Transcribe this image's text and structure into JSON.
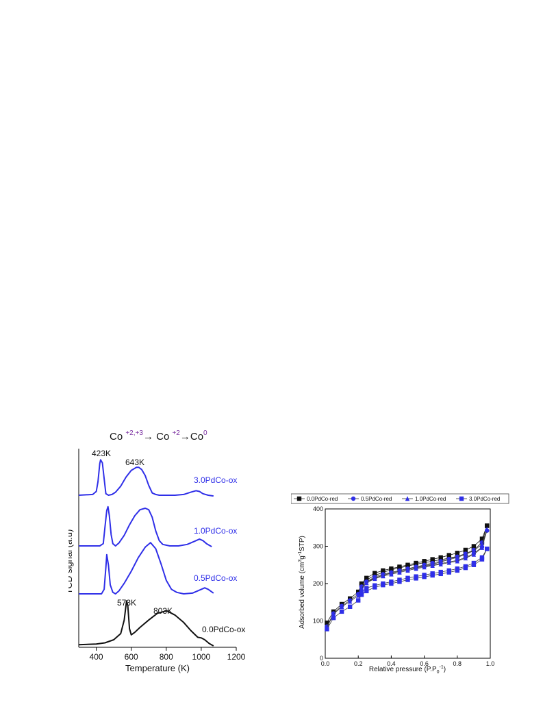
{
  "tpr": {
    "equation": {
      "co1": "Co ",
      "sup1": "+2,+3",
      "arrow1": "→",
      "co2": " Co ",
      "sup2": "+2",
      "arrow2": "→",
      "co3": "Co",
      "sup3": "0"
    },
    "ylabel": "TCD signal (a.u)",
    "xlabel": "Temperature (K)",
    "xticks": [
      "400",
      "600",
      "800",
      "1000",
      "1200"
    ],
    "peak_labels": {
      "p423": "423K",
      "p643": "643K",
      "p573": "573K",
      "p803": "803K"
    },
    "colors": {
      "blue": "#2f2fe8",
      "black": "#111111"
    }
  },
  "bet": {
    "ylabel": "Adsorbed volume (cm3g-1STP)",
    "xlabel": "Relative pressure (P.P0-1)",
    "xticks": [
      "0.0",
      "0.2",
      "0.4",
      "0.6",
      "0.8",
      "1.0"
    ],
    "yticks": [
      "0",
      "100",
      "200",
      "300",
      "400"
    ]
  },
  "chart_data": [
    {
      "type": "line",
      "xlabel": "Temperature (K)",
      "ylabel": "TCD signal (a.u)",
      "xlim": [
        300,
        1200
      ],
      "xticks": [
        400,
        600,
        800,
        1000,
        1200
      ],
      "yaxis_ticks": false,
      "series": [
        {
          "name": "3.0PdCo-ox",
          "color": "#2f2fe8",
          "x": [
            300,
            380,
            400,
            410,
            420,
            425,
            435,
            445,
            455,
            470,
            490,
            510,
            540,
            570,
            600,
            630,
            643,
            660,
            680,
            700,
            720,
            740,
            760,
            800,
            850,
            900,
            940,
            970,
            990,
            1010,
            1040,
            1070
          ],
          "y": [
            0.0,
            0.01,
            0.05,
            0.18,
            0.42,
            0.47,
            0.43,
            0.22,
            0.02,
            0.0,
            0.01,
            0.04,
            0.12,
            0.24,
            0.33,
            0.37,
            0.37,
            0.34,
            0.26,
            0.13,
            0.03,
            0.01,
            0.0,
            0.0,
            0.0,
            0.01,
            0.04,
            0.06,
            0.05,
            0.02,
            0.0,
            -0.01
          ]
        },
        {
          "name": "1.0PdCo-ox",
          "color": "#2f2fe8",
          "x": [
            300,
            420,
            440,
            450,
            460,
            467,
            475,
            485,
            495,
            510,
            530,
            560,
            590,
            620,
            650,
            680,
            700,
            720,
            740,
            760,
            780,
            820,
            870,
            920,
            960,
            990,
            1010,
            1030,
            1060
          ],
          "y": [
            0.0,
            0.0,
            0.03,
            0.25,
            0.47,
            0.52,
            0.4,
            0.15,
            0.03,
            0.0,
            0.04,
            0.14,
            0.28,
            0.4,
            0.48,
            0.5,
            0.48,
            0.38,
            0.2,
            0.07,
            0.02,
            0.0,
            0.0,
            0.02,
            0.06,
            0.09,
            0.07,
            0.03,
            -0.01
          ]
        },
        {
          "name": "0.5PdCo-ox",
          "color": "#2f2fe8",
          "x": [
            300,
            430,
            445,
            455,
            460,
            470,
            480,
            495,
            510,
            530,
            560,
            600,
            640,
            680,
            710,
            740,
            770,
            800,
            830,
            860,
            900,
            950,
            1000,
            1020,
            1040,
            1070
          ],
          "y": [
            0.0,
            0.0,
            0.06,
            0.35,
            0.52,
            0.38,
            0.12,
            0.02,
            0.0,
            0.04,
            0.14,
            0.3,
            0.48,
            0.62,
            0.68,
            0.6,
            0.4,
            0.18,
            0.06,
            0.02,
            0.0,
            0.01,
            0.06,
            0.08,
            0.06,
            0.01
          ]
        },
        {
          "name": "0.0PdCo-ox",
          "color": "#111111",
          "x": [
            300,
            400,
            450,
            500,
            540,
            560,
            573,
            580,
            590,
            600,
            620,
            650,
            700,
            750,
            803,
            850,
            900,
            940,
            980,
            1000,
            1020,
            1045,
            1070
          ],
          "y": [
            0.02,
            0.03,
            0.05,
            0.1,
            0.2,
            0.42,
            0.73,
            0.66,
            0.28,
            0.18,
            0.22,
            0.3,
            0.42,
            0.53,
            0.57,
            0.5,
            0.38,
            0.25,
            0.14,
            0.13,
            0.1,
            0.04,
            0.0
          ]
        }
      ],
      "annotations": [
        "423K",
        "643K",
        "573K",
        "803K"
      ]
    },
    {
      "type": "line",
      "xlabel": "Relative pressure (P.P0-1)",
      "ylabel": "Adsorbed volume (cm3g-1STP)",
      "xlim": [
        0,
        1
      ],
      "ylim": [
        0,
        400
      ],
      "legend_position": "top",
      "x": [
        0.01,
        0.05,
        0.1,
        0.15,
        0.2,
        0.22,
        0.25,
        0.3,
        0.35,
        0.4,
        0.45,
        0.5,
        0.55,
        0.6,
        0.65,
        0.7,
        0.75,
        0.8,
        0.85,
        0.9,
        0.95,
        0.98
      ],
      "series": [
        {
          "name": "0.0PdCo-red",
          "color": "#111111",
          "marker": "square",
          "values": [
            95,
            125,
            145,
            160,
            178,
            197,
            210,
            222,
            230,
            237,
            242,
            247,
            252,
            256,
            260,
            264,
            268,
            273,
            280,
            290,
            310,
            355
          ],
          "desorption": {
            "x": [
              0.98,
              0.95,
              0.9,
              0.85,
              0.8,
              0.75,
              0.7,
              0.65,
              0.6,
              0.55,
              0.5,
              0.45,
              0.4,
              0.35,
              0.3,
              0.25,
              0.22
            ],
            "values": [
              355,
              320,
              300,
              290,
              282,
              276,
              270,
              265,
              260,
              255,
              250,
              245,
              240,
              235,
              228,
              215,
              200
            ]
          }
        },
        {
          "name": "0.5PdCo-red",
          "color": "#2f2fe8",
          "marker": "circle",
          "values": [
            85,
            120,
            140,
            155,
            172,
            190,
            205,
            215,
            223,
            228,
            233,
            238,
            242,
            246,
            250,
            254,
            258,
            262,
            270,
            280,
            298,
            342
          ],
          "desorption": {
            "x": [
              0.98,
              0.95,
              0.9,
              0.85,
              0.8,
              0.75,
              0.7,
              0.65,
              0.6,
              0.55,
              0.5,
              0.45,
              0.4,
              0.35,
              0.3,
              0.25,
              0.22
            ],
            "values": [
              342,
              310,
              290,
              280,
              272,
              266,
              260,
              255,
              250,
              245,
              240,
              235,
              230,
              225,
              218,
              205,
              192
            ]
          }
        },
        {
          "name": "1.0PdCo-red",
          "color": "#2f2fe8",
          "marker": "triangle",
          "values": [
            82,
            118,
            138,
            152,
            168,
            186,
            202,
            213,
            220,
            225,
            230,
            235,
            240,
            244,
            248,
            252,
            256,
            260,
            268,
            278,
            296,
            345
          ],
          "desorption": {
            "x": [
              0.98,
              0.95,
              0.9,
              0.85,
              0.8,
              0.75,
              0.7,
              0.65,
              0.6,
              0.55,
              0.5,
              0.45,
              0.4,
              0.35,
              0.3,
              0.25,
              0.22
            ],
            "values": [
              345,
              305,
              288,
              278,
              270,
              264,
              258,
              252,
              248,
              243,
              238,
              233,
              228,
              222,
              215,
              202,
              188
            ]
          }
        },
        {
          "name": "3.0PdCo-red",
          "color": "#2f2fe8",
          "marker": "square",
          "values": [
            78,
            108,
            125,
            138,
            155,
            170,
            180,
            190,
            196,
            200,
            205,
            210,
            214,
            218,
            222,
            226,
            230,
            235,
            242,
            250,
            265,
            293
          ],
          "desorption": {
            "x": [
              0.98,
              0.95,
              0.9,
              0.85,
              0.8,
              0.75,
              0.7,
              0.65,
              0.6,
              0.55,
              0.5,
              0.45,
              0.4,
              0.35,
              0.3,
              0.25,
              0.22
            ],
            "values": [
              293,
              270,
              255,
              246,
              240,
              235,
              231,
              227,
              223,
              219,
              215,
              210,
              205,
              200,
              195,
              188,
              178
            ]
          }
        }
      ]
    }
  ]
}
